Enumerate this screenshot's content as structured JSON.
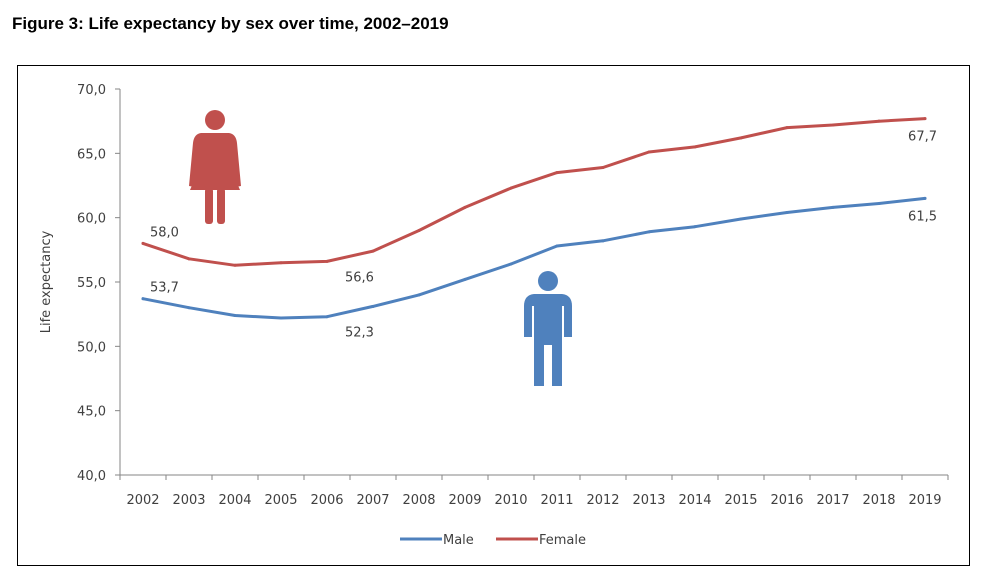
{
  "figure_title": "Figure 3: Life expectancy by sex over time, 2002–2019",
  "colors": {
    "male": "#4f81bd",
    "female": "#c0504d",
    "axis": "#868686"
  },
  "icons": {
    "female": "female-person-icon",
    "male": "male-person-icon"
  },
  "chart_data": {
    "type": "line",
    "title": "Life expectancy by sex over time, 2002–2019",
    "xlabel": "",
    "ylabel": "Life expectancy",
    "ylim": [
      40,
      70
    ],
    "yticks": [
      "40,0",
      "45,0",
      "50,0",
      "55,0",
      "60,0",
      "65,0",
      "70,0"
    ],
    "ytick_values": [
      40,
      45,
      50,
      55,
      60,
      65,
      70
    ],
    "categories": [
      "2002",
      "2003",
      "2004",
      "2005",
      "2006",
      "2007",
      "2008",
      "2009",
      "2010",
      "2011",
      "2012",
      "2013",
      "2014",
      "2015",
      "2016",
      "2017",
      "2018",
      "2019"
    ],
    "grid": false,
    "legend_position": "bottom",
    "series": [
      {
        "name": "Male",
        "values": [
          53.7,
          53.0,
          52.4,
          52.2,
          52.3,
          53.1,
          54.0,
          55.2,
          56.4,
          57.8,
          58.2,
          58.9,
          59.3,
          59.9,
          60.4,
          60.8,
          61.1,
          61.5
        ],
        "labels": [
          {
            "index": 0,
            "text": "53,7"
          },
          {
            "index": 4,
            "text": "52,3"
          },
          {
            "index": 17,
            "text": "61,5"
          }
        ]
      },
      {
        "name": "Female",
        "values": [
          58.0,
          56.8,
          56.3,
          56.5,
          56.6,
          57.4,
          59.0,
          60.8,
          62.3,
          63.5,
          63.9,
          65.1,
          65.5,
          66.2,
          67.0,
          67.2,
          67.5,
          67.7
        ],
        "labels": [
          {
            "index": 0,
            "text": "58,0"
          },
          {
            "index": 4,
            "text": "56,6"
          },
          {
            "index": 17,
            "text": "67,7"
          }
        ]
      }
    ]
  }
}
